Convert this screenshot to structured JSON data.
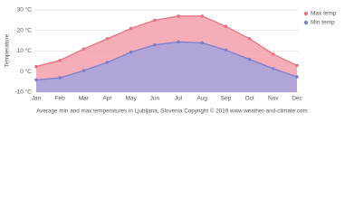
{
  "chart_data": {
    "type": "area",
    "y_label": "Temperature",
    "footer": "Average min and max temperatures in Ljubljana, Slovenia   Copyright © 2019 www.weather-and-climate.com",
    "categories": [
      "Jan",
      "Feb",
      "Mar",
      "Apr",
      "May",
      "Jun",
      "Jul",
      "Aug",
      "Sep",
      "Oct",
      "Nov",
      "Dec"
    ],
    "series": [
      {
        "name": "Max temp",
        "color": "#f3a0ab",
        "line_color": "#e8737f",
        "values": [
          2.5,
          5.5,
          11,
          16,
          21,
          25,
          27,
          27,
          22,
          16,
          8.5,
          3
        ]
      },
      {
        "name": "Min temp",
        "color": "#a3a3da",
        "line_color": "#7a7fd0",
        "values": [
          -4,
          -3,
          0.5,
          4.5,
          9.5,
          13,
          14.5,
          14,
          10.5,
          6,
          1.5,
          -2.5
        ]
      }
    ],
    "ylim": [
      -10,
      30
    ],
    "yticks": [
      {
        "value": -10,
        "label": "-10 °C"
      },
      {
        "value": 0,
        "label": "0 °C"
      },
      {
        "value": 10,
        "label": "10 °C"
      },
      {
        "value": 20,
        "label": "20 °C"
      },
      {
        "value": 30,
        "label": "30 °C"
      }
    ],
    "grid": true,
    "legend": "top-right"
  }
}
